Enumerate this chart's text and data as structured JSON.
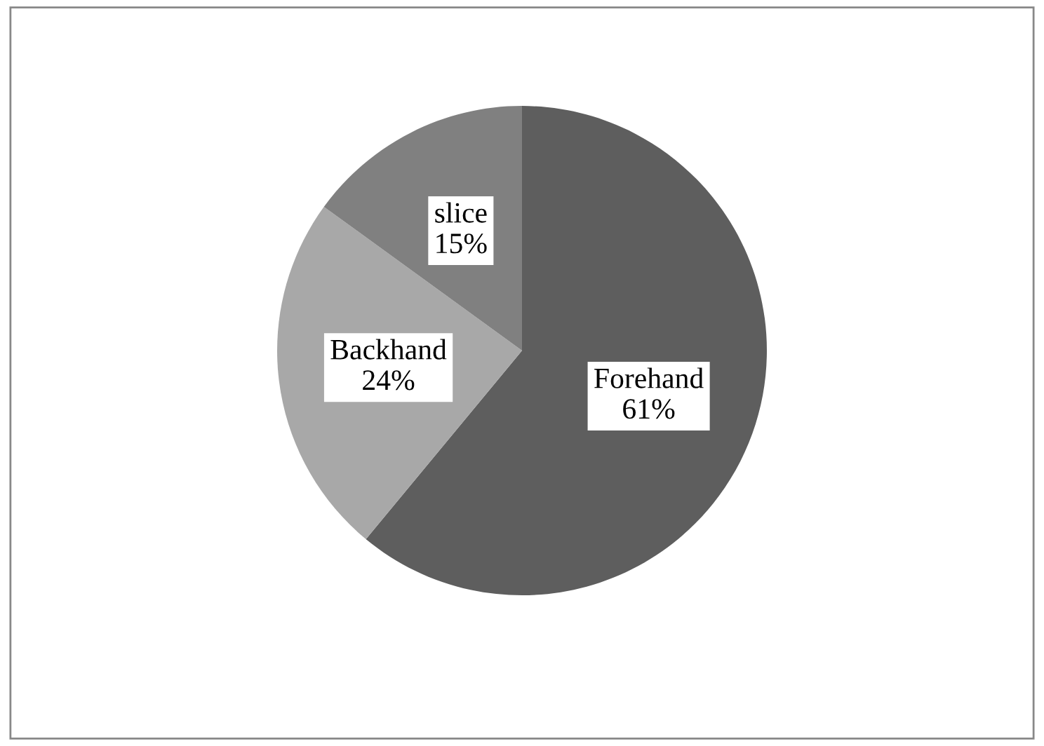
{
  "chart_data": {
    "type": "pie",
    "categories": [
      "Forehand",
      "Backhand",
      "slice"
    ],
    "values": [
      61,
      24,
      15
    ],
    "value_labels": [
      "61%",
      "24%",
      "15%"
    ],
    "colors": [
      "#5e5e5e",
      "#a8a8a8",
      "#808080"
    ]
  }
}
